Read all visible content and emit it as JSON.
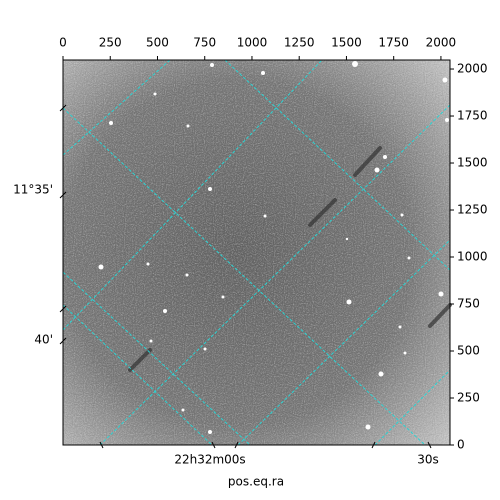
{
  "chart_data": {
    "type": "image",
    "xlabel": "pos.eq.ra",
    "xlim": [
      0,
      2048
    ],
    "ylim": [
      0,
      2048
    ],
    "xticks": [
      0,
      250,
      500,
      750,
      1000,
      1250,
      1500,
      1750,
      2000
    ],
    "yticks": [
      0,
      250,
      500,
      750,
      1000,
      1250,
      1500,
      1750,
      2000
    ],
    "ra_ticks": [
      "22h32m00s",
      "30s"
    ],
    "dec_ticks": [
      "11°35'",
      "40'"
    ],
    "grid_color": "#2ad4d4"
  }
}
